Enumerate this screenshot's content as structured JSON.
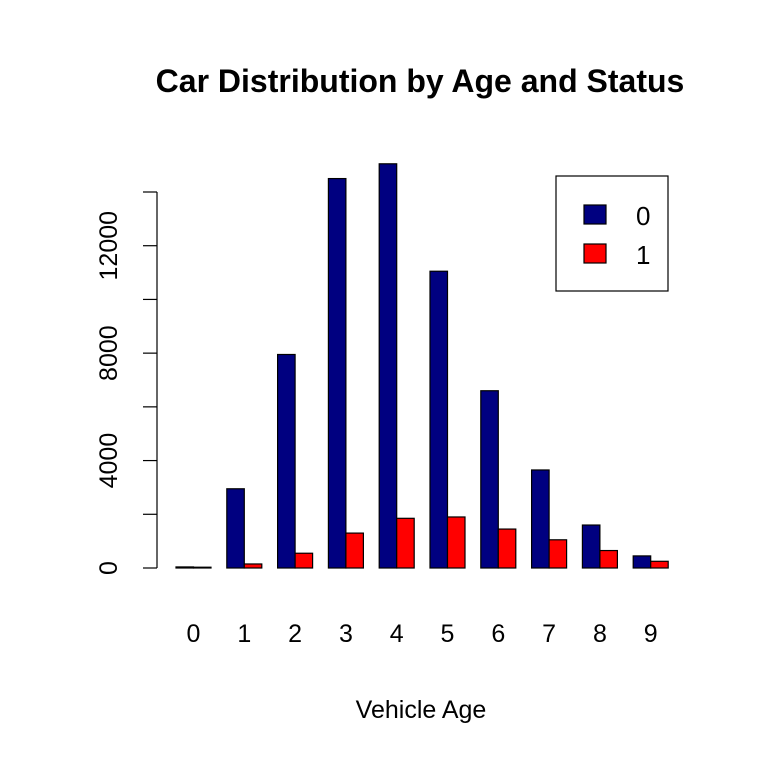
{
  "chart_data": {
    "type": "bar",
    "title": "Car Distribution by Age and Status",
    "xlabel": "Vehicle Age",
    "ylabel": "",
    "categories": [
      "0",
      "1",
      "2",
      "3",
      "4",
      "5",
      "6",
      "7",
      "8",
      "9"
    ],
    "series": [
      {
        "name": "0",
        "color": "#000080",
        "values": [
          40,
          2950,
          7950,
          14500,
          15050,
          11050,
          6600,
          3650,
          1600,
          450
        ]
      },
      {
        "name": "1",
        "color": "#FF0000",
        "values": [
          15,
          150,
          550,
          1300,
          1850,
          1900,
          1450,
          1050,
          650,
          250
        ]
      }
    ],
    "ylim": [
      0,
      14000
    ],
    "yticks": [
      0,
      4000,
      8000,
      12000
    ],
    "grid": false,
    "legend_position": "top-right"
  }
}
